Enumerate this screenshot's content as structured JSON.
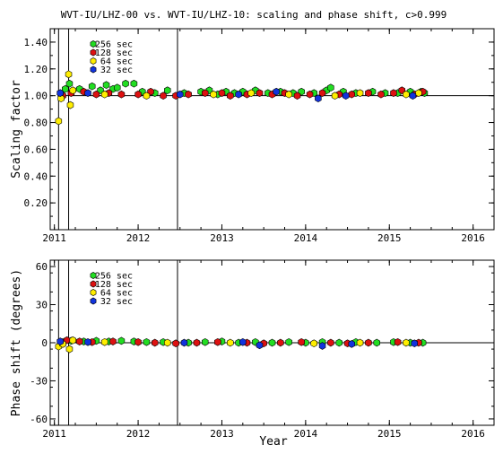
{
  "title": "WVT-IU/LHZ-00 vs. WVT-IU/LHZ-10: scaling and phase shift, c>0.999",
  "xlabel": "Year",
  "series_colors": {
    "256 sec": "#22dd22",
    "128 sec": "#dd1111",
    "64 sec": "#ffee00",
    "32 sec": "#1133dd"
  },
  "chart_data": [
    {
      "type": "scatter",
      "ylabel": "Scaling factor",
      "xlim": [
        2010.95,
        2016.25
      ],
      "ylim": [
        0.0,
        1.5
      ],
      "xticks": [
        2011,
        2012,
        2013,
        2014,
        2015,
        2016
      ],
      "yticks": [
        0.2,
        0.4,
        0.6,
        0.8,
        1.0,
        1.2,
        1.4
      ],
      "ytick_labels": [
        "0.20",
        "0.40",
        "0.60",
        "0.80",
        "1.00",
        "1.20",
        "1.40"
      ],
      "reference_line": 1.0,
      "vertical_lines": [
        2011.05,
        2011.17,
        2012.47
      ],
      "legend": [
        "256 sec",
        "128 sec",
        "64 sec",
        "32 sec"
      ],
      "series": [
        {
          "name": "256 sec",
          "points": [
            [
              2011.08,
              1.01
            ],
            [
              2011.13,
              1.05
            ],
            [
              2011.18,
              1.09
            ],
            [
              2011.3,
              1.05
            ],
            [
              2011.45,
              1.07
            ],
            [
              2011.55,
              1.04
            ],
            [
              2011.62,
              1.08
            ],
            [
              2011.7,
              1.05
            ],
            [
              2011.75,
              1.06
            ],
            [
              2011.85,
              1.09
            ],
            [
              2011.95,
              1.09
            ],
            [
              2012.05,
              1.03
            ],
            [
              2012.2,
              1.02
            ],
            [
              2012.35,
              1.04
            ],
            [
              2012.55,
              1.02
            ],
            [
              2012.75,
              1.03
            ],
            [
              2012.85,
              1.04
            ],
            [
              2012.95,
              1.01
            ],
            [
              2013.05,
              1.03
            ],
            [
              2013.15,
              1.02
            ],
            [
              2013.25,
              1.03
            ],
            [
              2013.4,
              1.04
            ],
            [
              2013.55,
              1.02
            ],
            [
              2013.7,
              1.03
            ],
            [
              2013.85,
              1.02
            ],
            [
              2013.95,
              1.03
            ],
            [
              2014.1,
              1.02
            ],
            [
              2014.25,
              1.04
            ],
            [
              2014.3,
              1.06
            ],
            [
              2014.45,
              1.03
            ],
            [
              2014.6,
              1.02
            ],
            [
              2014.8,
              1.03
            ],
            [
              2014.95,
              1.02
            ],
            [
              2015.1,
              1.02
            ],
            [
              2015.25,
              1.03
            ],
            [
              2015.38,
              1.03
            ],
            [
              2015.42,
              1.02
            ]
          ]
        },
        {
          "name": "128 sec",
          "points": [
            [
              2011.1,
              1.0
            ],
            [
              2011.2,
              1.02
            ],
            [
              2011.35,
              1.03
            ],
            [
              2011.5,
              1.01
            ],
            [
              2011.65,
              1.02
            ],
            [
              2011.8,
              1.01
            ],
            [
              2012.0,
              1.01
            ],
            [
              2012.15,
              1.03
            ],
            [
              2012.3,
              1.0
            ],
            [
              2012.45,
              1.0
            ],
            [
              2012.6,
              1.01
            ],
            [
              2012.8,
              1.02
            ],
            [
              2013.0,
              1.02
            ],
            [
              2013.1,
              1.0
            ],
            [
              2013.3,
              1.01
            ],
            [
              2013.45,
              1.02
            ],
            [
              2013.6,
              1.01
            ],
            [
              2013.75,
              1.02
            ],
            [
              2013.9,
              1.0
            ],
            [
              2014.05,
              1.01
            ],
            [
              2014.2,
              1.02
            ],
            [
              2014.4,
              1.01
            ],
            [
              2014.55,
              1.01
            ],
            [
              2014.75,
              1.02
            ],
            [
              2014.9,
              1.01
            ],
            [
              2015.05,
              1.02
            ],
            [
              2015.15,
              1.04
            ],
            [
              2015.3,
              1.01
            ],
            [
              2015.4,
              1.03
            ]
          ]
        },
        {
          "name": "64 sec",
          "points": [
            [
              2011.05,
              0.81
            ],
            [
              2011.08,
              0.98
            ],
            [
              2011.17,
              1.16
            ],
            [
              2011.19,
              0.93
            ],
            [
              2011.22,
              1.04
            ],
            [
              2011.6,
              1.01
            ],
            [
              2012.1,
              1.0
            ],
            [
              2012.9,
              1.01
            ],
            [
              2013.35,
              1.02
            ],
            [
              2013.8,
              1.01
            ],
            [
              2014.35,
              1.0
            ],
            [
              2014.65,
              1.02
            ],
            [
              2015.2,
              1.01
            ],
            [
              2015.35,
              1.02
            ]
          ]
        },
        {
          "name": "32 sec",
          "points": [
            [
              2011.07,
              1.02
            ],
            [
              2011.4,
              1.02
            ],
            [
              2012.5,
              1.01
            ],
            [
              2013.2,
              1.01
            ],
            [
              2013.65,
              1.03
            ],
            [
              2014.15,
              0.98
            ],
            [
              2014.48,
              1.0
            ],
            [
              2015.28,
              1.0
            ]
          ]
        }
      ]
    },
    {
      "type": "scatter",
      "ylabel": "Phase shift (degrees)",
      "xlim": [
        2010.95,
        2016.25
      ],
      "ylim": [
        -65,
        65
      ],
      "xticks": [
        2011,
        2012,
        2013,
        2014,
        2015,
        2016
      ],
      "yticks": [
        -60,
        -30,
        0,
        30,
        60
      ],
      "ytick_labels": [
        "-60",
        "-30",
        "0",
        "30",
        "60"
      ],
      "reference_line": 0,
      "vertical_lines": [
        2011.05,
        2011.17,
        2012.47
      ],
      "legend": [
        "256 sec",
        "128 sec",
        "64 sec",
        "32 sec"
      ],
      "series": [
        {
          "name": "256 sec",
          "points": [
            [
              2011.1,
              0.5
            ],
            [
              2011.2,
              1.5
            ],
            [
              2011.35,
              1.0
            ],
            [
              2011.5,
              1.5
            ],
            [
              2011.65,
              1.0
            ],
            [
              2011.8,
              1.5
            ],
            [
              2011.95,
              1.0
            ],
            [
              2012.1,
              0.5
            ],
            [
              2012.3,
              0.5
            ],
            [
              2012.6,
              0.0
            ],
            [
              2012.8,
              0.5
            ],
            [
              2013.0,
              1.0
            ],
            [
              2013.2,
              0.0
            ],
            [
              2013.4,
              0.5
            ],
            [
              2013.6,
              0.0
            ],
            [
              2013.8,
              0.5
            ],
            [
              2014.0,
              0.0
            ],
            [
              2014.2,
              0.5
            ],
            [
              2014.4,
              0.0
            ],
            [
              2014.6,
              0.5
            ],
            [
              2014.85,
              0.0
            ],
            [
              2015.05,
              0.5
            ],
            [
              2015.25,
              0.0
            ],
            [
              2015.4,
              0.0
            ]
          ]
        },
        {
          "name": "128 sec",
          "points": [
            [
              2011.15,
              2.0
            ],
            [
              2011.3,
              1.0
            ],
            [
              2011.45,
              0.5
            ],
            [
              2011.7,
              1.0
            ],
            [
              2012.0,
              0.5
            ],
            [
              2012.2,
              0.0
            ],
            [
              2012.45,
              -0.5
            ],
            [
              2012.7,
              0.0
            ],
            [
              2012.95,
              0.5
            ],
            [
              2013.3,
              0.0
            ],
            [
              2013.5,
              -0.5
            ],
            [
              2013.7,
              0.0
            ],
            [
              2013.95,
              0.5
            ],
            [
              2014.3,
              0.0
            ],
            [
              2014.5,
              -0.5
            ],
            [
              2014.75,
              0.0
            ],
            [
              2015.1,
              0.5
            ],
            [
              2015.35,
              0.0
            ]
          ]
        },
        {
          "name": "64 sec",
          "points": [
            [
              2011.05,
              -3.0
            ],
            [
              2011.1,
              -1.0
            ],
            [
              2011.18,
              -5.0
            ],
            [
              2011.22,
              2.0
            ],
            [
              2011.6,
              0.5
            ],
            [
              2012.35,
              0.0
            ],
            [
              2013.1,
              0.0
            ],
            [
              2014.1,
              -0.5
            ],
            [
              2014.65,
              0.0
            ],
            [
              2015.2,
              0.0
            ]
          ]
        },
        {
          "name": "32 sec",
          "points": [
            [
              2011.07,
              1.0
            ],
            [
              2011.4,
              0.5
            ],
            [
              2012.55,
              0.0
            ],
            [
              2013.25,
              0.5
            ],
            [
              2013.45,
              -2.0
            ],
            [
              2014.2,
              -2.5
            ],
            [
              2014.55,
              -1.0
            ],
            [
              2015.3,
              -0.5
            ]
          ]
        }
      ]
    }
  ]
}
